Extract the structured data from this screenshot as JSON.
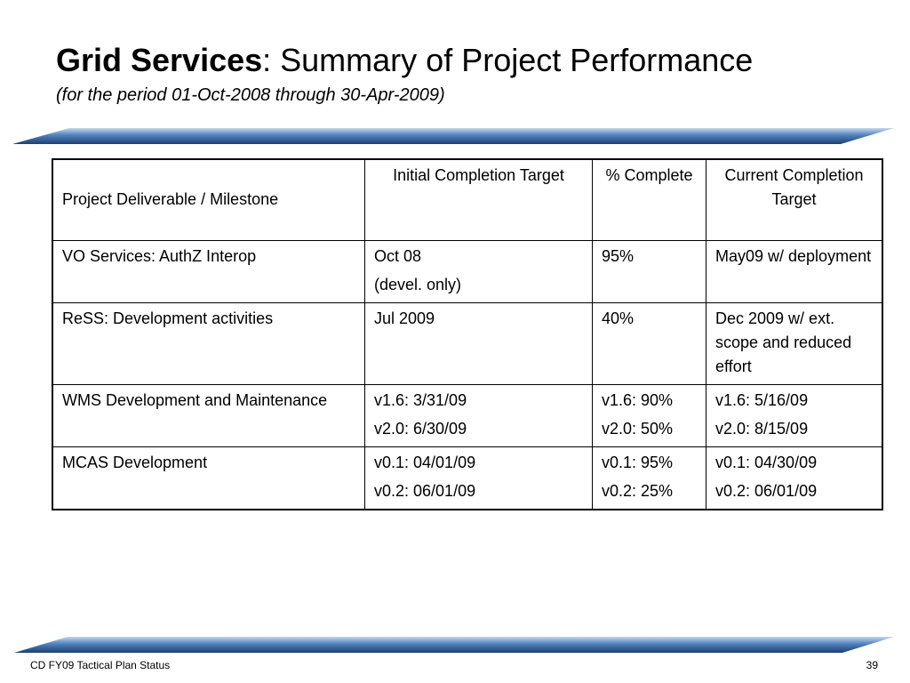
{
  "slide": {
    "title_bold": "Grid Services",
    "title_rest": ": Summary of Project Performance",
    "subtitle": "(for the period 01-Oct-2008 through 30-Apr-2009)"
  },
  "table": {
    "headers": [
      "Project Deliverable / Milestone",
      "Initial Completion Target",
      "% Complete",
      "Current Completion Target"
    ],
    "rows": [
      {
        "deliverable": [
          "VO Services: AuthZ Interop"
        ],
        "initial": [
          "Oct 08",
          "(devel. only)"
        ],
        "complete": [
          "95%"
        ],
        "current": [
          "May09 w/ deployment"
        ]
      },
      {
        "deliverable": [
          "ReSS: Development activities"
        ],
        "initial": [
          "Jul 2009"
        ],
        "complete": [
          "40%"
        ],
        "current": [
          "Dec 2009 w/ ext. scope and reduced effort"
        ]
      },
      {
        "deliverable": [
          "WMS Development and Maintenance"
        ],
        "initial": [
          "v1.6: 3/31/09",
          "v2.0: 6/30/09"
        ],
        "complete": [
          "v1.6: 90%",
          "v2.0: 50%"
        ],
        "current": [
          "v1.6: 5/16/09",
          "v2.0: 8/15/09"
        ]
      },
      {
        "deliverable": [
          "MCAS Development"
        ],
        "initial": [
          "v0.1: 04/01/09",
          "v0.2: 06/01/09"
        ],
        "complete": [
          "v0.1: 95%",
          "v0.2: 25%"
        ],
        "current": [
          "v0.1: 04/30/09",
          "v0.2: 06/01/09"
        ]
      }
    ]
  },
  "footer": {
    "left": "CD FY09 Tactical Plan Status",
    "page_number": "39"
  },
  "colors": {
    "band_light": "#c5d7ec",
    "band_mid": "#4f81bd",
    "band_dark": "#1f3f70"
  }
}
